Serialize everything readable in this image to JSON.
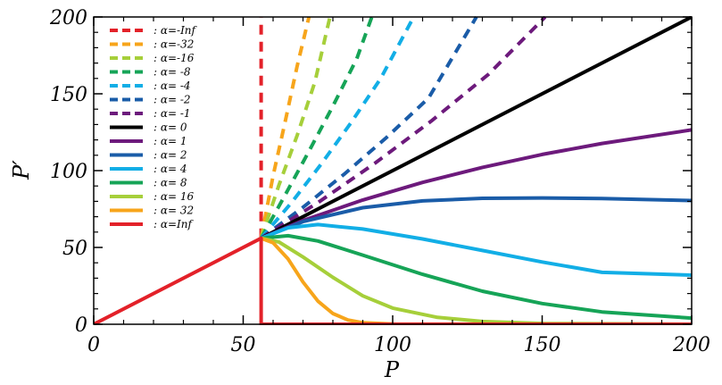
{
  "chart_data": {
    "type": "line",
    "title": "",
    "xlabel": "P",
    "ylabel": "P′",
    "xlim": [
      0,
      200
    ],
    "ylim": [
      0,
      200
    ],
    "xticks": [
      "0",
      "50",
      "100",
      "150",
      "200"
    ],
    "yticks": [
      "0",
      "50",
      "100",
      "150",
      "200"
    ],
    "legend_position": "top-left",
    "grid": false,
    "threshold_p": 56,
    "series": [
      {
        "name": ": α=-Inf",
        "color": "#e32129",
        "dash": true,
        "x": [
          56,
          56
        ],
        "y": [
          56,
          200
        ]
      },
      {
        "name": ": α=-32",
        "color": "#f7a51b",
        "dash": true,
        "x": [
          56,
          60,
          64,
          68,
          72
        ],
        "y": [
          56,
          96.6,
          131.5,
          167.6,
          200
        ]
      },
      {
        "name": ": α=-16",
        "color": "#a6cf3a",
        "dash": true,
        "x": [
          56,
          62,
          68,
          74,
          79
        ],
        "y": [
          56,
          90.8,
          122.6,
          157.8,
          200
        ]
      },
      {
        "name": ": α= -8",
        "color": "#16a457",
        "dash": true,
        "x": [
          56,
          64,
          72,
          80,
          88,
          93
        ],
        "y": [
          56,
          84.0,
          112.6,
          142.0,
          172.9,
          200
        ]
      },
      {
        "name": ": α= -4",
        "color": "#12aee6",
        "dash": true,
        "x": [
          56,
          66,
          76,
          86,
          96,
          107
        ],
        "y": [
          56,
          78.8,
          104.0,
          131.0,
          160.0,
          200
        ]
      },
      {
        "name": ": α= -2",
        "color": "#1a5ca8",
        "dash": true,
        "x": [
          56,
          70,
          84,
          98,
          112,
          128
        ],
        "y": [
          56,
          76.1,
          98.0,
          121.7,
          147.2,
          200
        ]
      },
      {
        "name": ": α= -1",
        "color": "#6d1a7c",
        "dash": true,
        "x": [
          56,
          75,
          94,
          113,
          132,
          151
        ],
        "y": [
          56,
          79.2,
          104.7,
          132.4,
          162.6,
          200
        ]
      },
      {
        "name": ": α=  0",
        "color": "#000000",
        "dash": false,
        "x": [
          56,
          200
        ],
        "y": [
          56,
          200
        ]
      },
      {
        "name": ": α=  1",
        "color": "#6d1a7c",
        "dash": false,
        "x": [
          56,
          70,
          90,
          110,
          130,
          150,
          170,
          200
        ],
        "y": [
          56,
          67.5,
          80.9,
          92.3,
          102.1,
          110.5,
          117.7,
          126.5
        ]
      },
      {
        "name": ": α=  2",
        "color": "#1a5ca8",
        "dash": false,
        "x": [
          56,
          70,
          90,
          110,
          130,
          150,
          170,
          200
        ],
        "y": [
          56,
          66.8,
          75.9,
          80.3,
          82.0,
          82.2,
          81.8,
          80.5
        ]
      },
      {
        "name": ": α=  4",
        "color": "#12aee6",
        "dash": false,
        "x": [
          56,
          65,
          75,
          90,
          110,
          130,
          150,
          170,
          200
        ],
        "y": [
          56,
          62.8,
          64.9,
          62.0,
          55.5,
          48.0,
          40.5,
          33.8,
          32.0
        ]
      },
      {
        "name": ": α=  8",
        "color": "#16a457",
        "dash": false,
        "x": [
          56,
          65,
          75,
          90,
          110,
          130,
          150,
          170,
          200
        ],
        "y": [
          56,
          57.6,
          54.2,
          45.0,
          32.5,
          21.5,
          13.5,
          8.0,
          4.0
        ]
      },
      {
        "name": ": α= 16",
        "color": "#a6cf3a",
        "dash": false,
        "x": [
          56,
          62,
          70,
          80,
          90,
          100,
          115,
          130,
          150,
          200
        ],
        "y": [
          56,
          53.5,
          43.8,
          30.5,
          18.5,
          10.5,
          4.5,
          1.8,
          0.5,
          0
        ]
      },
      {
        "name": ": α= 32",
        "color": "#f7a51b",
        "dash": false,
        "x": [
          56,
          60,
          65,
          70,
          75,
          80,
          85,
          90,
          100,
          200
        ],
        "y": [
          56,
          53.0,
          42.5,
          27.5,
          15.0,
          7.0,
          2.8,
          1.0,
          0.1,
          0
        ]
      },
      {
        "name": ": α=Inf",
        "color": "#e32129",
        "dash": false,
        "x": [
          0,
          56,
          56,
          200
        ],
        "y": [
          0,
          56,
          0,
          0
        ]
      }
    ]
  }
}
